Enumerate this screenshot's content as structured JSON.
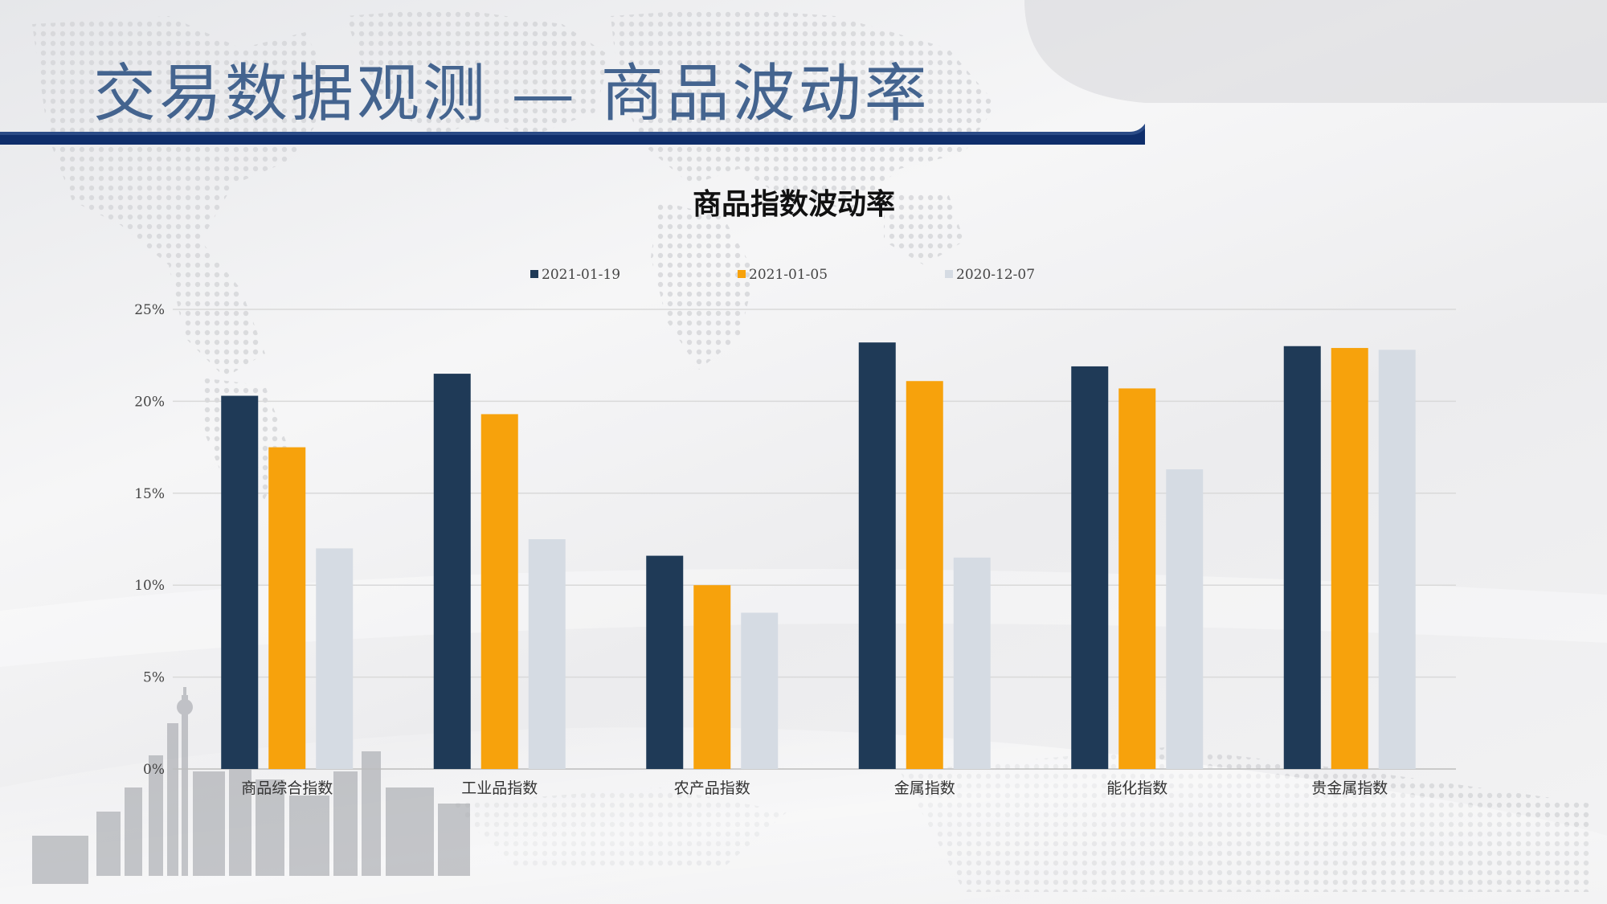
{
  "slide": {
    "title": "交易数据观测 — 商品波动率"
  },
  "colors": {
    "title": "#44648f",
    "header_bar": "#0f2e6b",
    "series": [
      "#1f3a57",
      "#f7a20c",
      "#d5dbe3"
    ]
  },
  "chart_data": {
    "type": "bar",
    "title": "商品指数波动率",
    "categories": [
      "商品综合指数",
      "工业品指数",
      "农产品指数",
      "金属指数",
      "能化指数",
      "贵金属指数"
    ],
    "series": [
      {
        "name": "2021-01-19",
        "values": [
          20.3,
          21.5,
          11.6,
          23.2,
          21.9,
          23.0
        ]
      },
      {
        "name": "2021-01-05",
        "values": [
          17.5,
          19.3,
          10.0,
          21.1,
          20.7,
          22.9
        ]
      },
      {
        "name": "2020-12-07",
        "values": [
          12.0,
          12.5,
          8.5,
          11.5,
          16.3,
          22.8
        ]
      }
    ],
    "ylim": [
      0,
      25
    ],
    "yticks": [
      0,
      5,
      10,
      15,
      20,
      25
    ],
    "ytick_labels": [
      "0%",
      "5%",
      "10%",
      "15%",
      "20%",
      "25%"
    ],
    "legend_position": "top",
    "grid": true,
    "xlabel": "",
    "ylabel": ""
  }
}
